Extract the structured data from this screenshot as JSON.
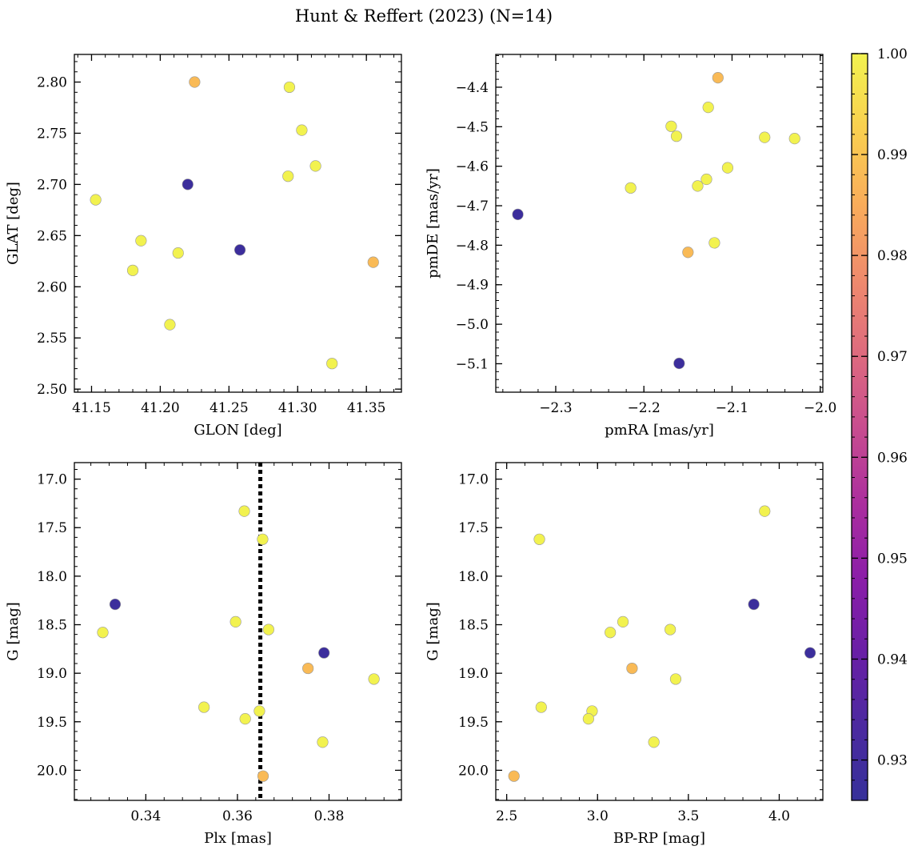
{
  "figure": {
    "title": "Hunt & Reffert (2023) (N=14)"
  },
  "colors": {
    "frame": "#000000",
    "marker_edge": "#999999",
    "parallax_line": "#000000",
    "colormap": [
      "#36309a",
      "#4c2aa0",
      "#6a1fa6",
      "#8c1ea8",
      "#ac2f9e",
      "#c84d8f",
      "#de6b7e",
      "#ef8b6c",
      "#f9ad5a",
      "#f9d04f",
      "#f2f24f"
    ]
  },
  "colorbar": {
    "min": 0.926,
    "max": 1.0,
    "ticks": [
      "0.93",
      "0.94",
      "0.95",
      "0.96",
      "0.97",
      "0.98",
      "0.99",
      "1.00"
    ]
  },
  "chart_data": [
    {
      "type": "scatter",
      "xlabel": "GLON [deg]",
      "ylabel": "GLAT [deg]",
      "xlim": [
        41.1375,
        41.3755
      ],
      "ylim": [
        2.497,
        2.827
      ],
      "xticks": [
        "41.15",
        "41.20",
        "41.25",
        "41.30",
        "41.35"
      ],
      "yticks": [
        "2.50",
        "2.55",
        "2.60",
        "2.65",
        "2.70",
        "2.75",
        "2.80"
      ],
      "x": [
        41.225,
        41.294,
        41.303,
        41.22,
        41.313,
        41.293,
        41.153,
        41.186,
        41.18,
        41.213,
        41.258,
        41.355,
        41.207,
        41.325
      ],
      "y": [
        2.8,
        2.795,
        2.753,
        2.7,
        2.718,
        2.708,
        2.685,
        2.645,
        2.616,
        2.633,
        2.636,
        2.624,
        2.563,
        2.525
      ],
      "c": [
        0.988,
        1.0,
        1.0,
        0.928,
        1.0,
        1.0,
        1.0,
        1.0,
        1.0,
        1.0,
        0.928,
        0.988,
        1.0,
        1.0
      ]
    },
    {
      "type": "scatter",
      "xlabel": "pmRA [mas/yr]",
      "ylabel": "pmDE [mas/yr]",
      "xlim": [
        -2.368,
        -1.997
      ],
      "ylim": [
        -5.172,
        -4.317
      ],
      "xticks": [
        "−2.3",
        "−2.2",
        "−2.1",
        "−2.0"
      ],
      "yticks": [
        "−5.1",
        "−5.0",
        "−4.9",
        "−4.8",
        "−4.7",
        "−4.6",
        "−4.5",
        "−4.4"
      ],
      "x": [
        -2.116,
        -2.127,
        -2.169,
        -2.163,
        -2.063,
        -2.029,
        -2.105,
        -2.129,
        -2.139,
        -2.215,
        -2.343,
        -2.12,
        -2.15,
        -2.16
      ],
      "y": [
        -4.376,
        -4.451,
        -4.499,
        -4.524,
        -4.527,
        -4.53,
        -4.604,
        -4.633,
        -4.65,
        -4.655,
        -4.722,
        -4.794,
        -4.818,
        -5.099
      ],
      "c": [
        0.988,
        1.0,
        1.0,
        1.0,
        1.0,
        1.0,
        1.0,
        1.0,
        1.0,
        1.0,
        0.928,
        1.0,
        0.988,
        0.928
      ]
    },
    {
      "type": "scatter",
      "xlabel": "Plx [mas]",
      "ylabel": "G [mag]",
      "xlim": [
        0.3244,
        0.3958
      ],
      "ylim": [
        20.31,
        16.83
      ],
      "xticks": [
        "0.34",
        "0.36",
        "0.38"
      ],
      "yticks": [
        "17.0",
        "17.5",
        "18.0",
        "18.5",
        "19.0",
        "19.5",
        "20.0"
      ],
      "vline": 0.365,
      "x": [
        0.3615,
        0.3655,
        0.3333,
        0.3306,
        0.3596,
        0.3668,
        0.3789,
        0.3754,
        0.3898,
        0.3527,
        0.3648,
        0.3617,
        0.3786,
        0.3656
      ],
      "y": [
        17.33,
        17.62,
        18.29,
        18.58,
        18.47,
        18.55,
        18.79,
        18.95,
        19.06,
        19.35,
        19.39,
        19.47,
        19.71,
        20.06
      ],
      "c": [
        1.0,
        1.0,
        0.928,
        1.0,
        1.0,
        1.0,
        0.928,
        0.988,
        1.0,
        1.0,
        1.0,
        1.0,
        1.0,
        0.988
      ]
    },
    {
      "type": "scatter",
      "xlabel": "BP-RP [mag]",
      "ylabel": "G [mag]",
      "xlim": [
        2.44,
        4.24
      ],
      "ylim": [
        20.31,
        16.83
      ],
      "xticks": [
        "2.5",
        "3.0",
        "3.5",
        "4.0"
      ],
      "yticks": [
        "17.0",
        "17.5",
        "18.0",
        "18.5",
        "19.0",
        "19.5",
        "20.0"
      ],
      "x": [
        3.92,
        2.68,
        3.86,
        3.07,
        3.14,
        3.4,
        4.17,
        3.19,
        3.43,
        2.69,
        2.97,
        2.95,
        3.31,
        2.54
      ],
      "y": [
        17.33,
        17.62,
        18.29,
        18.58,
        18.47,
        18.55,
        18.79,
        18.95,
        19.06,
        19.35,
        19.39,
        19.47,
        19.71,
        20.06
      ],
      "c": [
        1.0,
        1.0,
        0.928,
        1.0,
        1.0,
        1.0,
        0.928,
        0.988,
        1.0,
        1.0,
        1.0,
        1.0,
        1.0,
        0.988
      ]
    }
  ]
}
